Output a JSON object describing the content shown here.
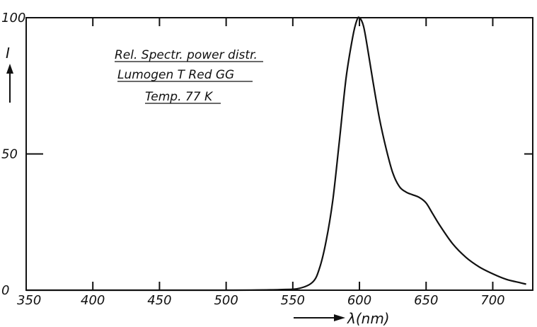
{
  "chart_data": {
    "type": "line",
    "title": "",
    "annotations": [
      "Rel. Spectr. power distr.",
      "Lumogen T Red GG",
      "Temp. 77 K"
    ],
    "xlabel": "λ(nm)",
    "ylabel": "I",
    "xlim": [
      350,
      730
    ],
    "ylim": [
      0,
      100
    ],
    "x_ticks": [
      350,
      400,
      450,
      500,
      550,
      600,
      650,
      700
    ],
    "y_ticks": [
      0,
      50,
      100
    ],
    "grid": false,
    "series": [
      {
        "name": "",
        "x": [
          350,
          400,
          450,
          500,
          540,
          555,
          565,
          570,
          575,
          580,
          585,
          590,
          595,
          598,
          600,
          603,
          606,
          610,
          615,
          620,
          625,
          630,
          635,
          640,
          645,
          650,
          655,
          660,
          670,
          680,
          690,
          700,
          710,
          720,
          725
        ],
        "y": [
          0,
          0,
          0,
          0,
          0.2,
          0.7,
          3,
          8,
          18,
          33,
          55,
          78,
          93,
          99,
          100,
          97,
          89,
          77,
          63,
          52,
          43,
          38,
          36,
          35,
          34,
          32,
          28,
          24,
          17,
          12,
          8.5,
          6,
          4,
          2.8,
          2.2
        ]
      }
    ]
  }
}
